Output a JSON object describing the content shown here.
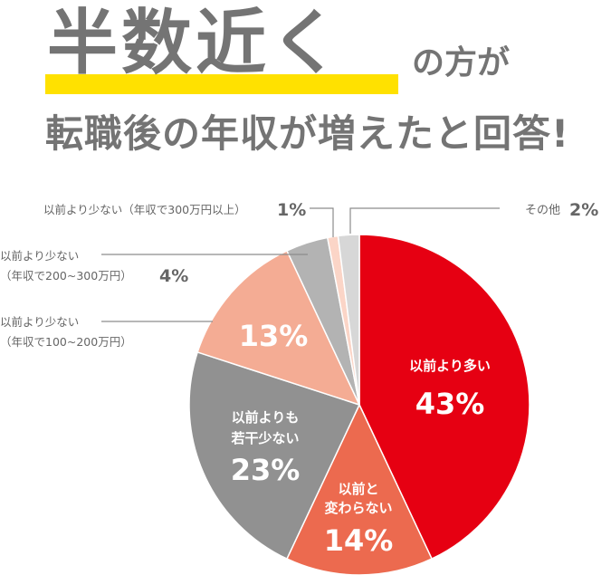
{
  "headline": {
    "big": "半数近く",
    "small": "の方が",
    "sub": "転職後の年収が増えたと回答!"
  },
  "colors": {
    "highlight": "#ffe100",
    "text": "#747474"
  },
  "chart_data": {
    "type": "pie",
    "start_angle": "12 o'clock",
    "direction": "clockwise",
    "slices": [
      {
        "label": "以前より多い",
        "value": 43,
        "color": "#e60012",
        "pct": "43%"
      },
      {
        "label": "以前と変わらない",
        "value": 14,
        "color": "#ec6a4f",
        "pct": "14%"
      },
      {
        "label": "以前よりも若干少ない",
        "value": 23,
        "color": "#919191",
        "pct": "23%"
      },
      {
        "label": "以前より少ない（年収で100~200万円）",
        "value": 13,
        "color": "#f4ac94",
        "pct": "13%"
      },
      {
        "label": "以前より少ない（年収で200~300万円）",
        "value": 4,
        "color": "#b3b3b3",
        "pct": "4%"
      },
      {
        "label": "以前より少ない（年収で300万円以上）",
        "value": 1,
        "color": "#fbd5c7",
        "pct": "1%"
      },
      {
        "label": "その他",
        "value": 2,
        "color": "#d7d7d7",
        "pct": "2%"
      }
    ],
    "inner_labels": {
      "s0_line1": "以前より多い",
      "s1_line1": "以前と",
      "s1_line2": "変わらない",
      "s2_line1": "以前よりも",
      "s2_line2": "若干少ない"
    },
    "callouts": {
      "c300": "以前より少ない（年収で300万円以上）",
      "c300_pct": "1%",
      "c200_l1": "以前より少ない",
      "c200_l2": "（年収で200~300万円）",
      "c200_pct": "4%",
      "c100_l1": "以前より少ない",
      "c100_l2": "（年収で100~200万円）",
      "other": "その他",
      "other_pct": "2%"
    }
  }
}
